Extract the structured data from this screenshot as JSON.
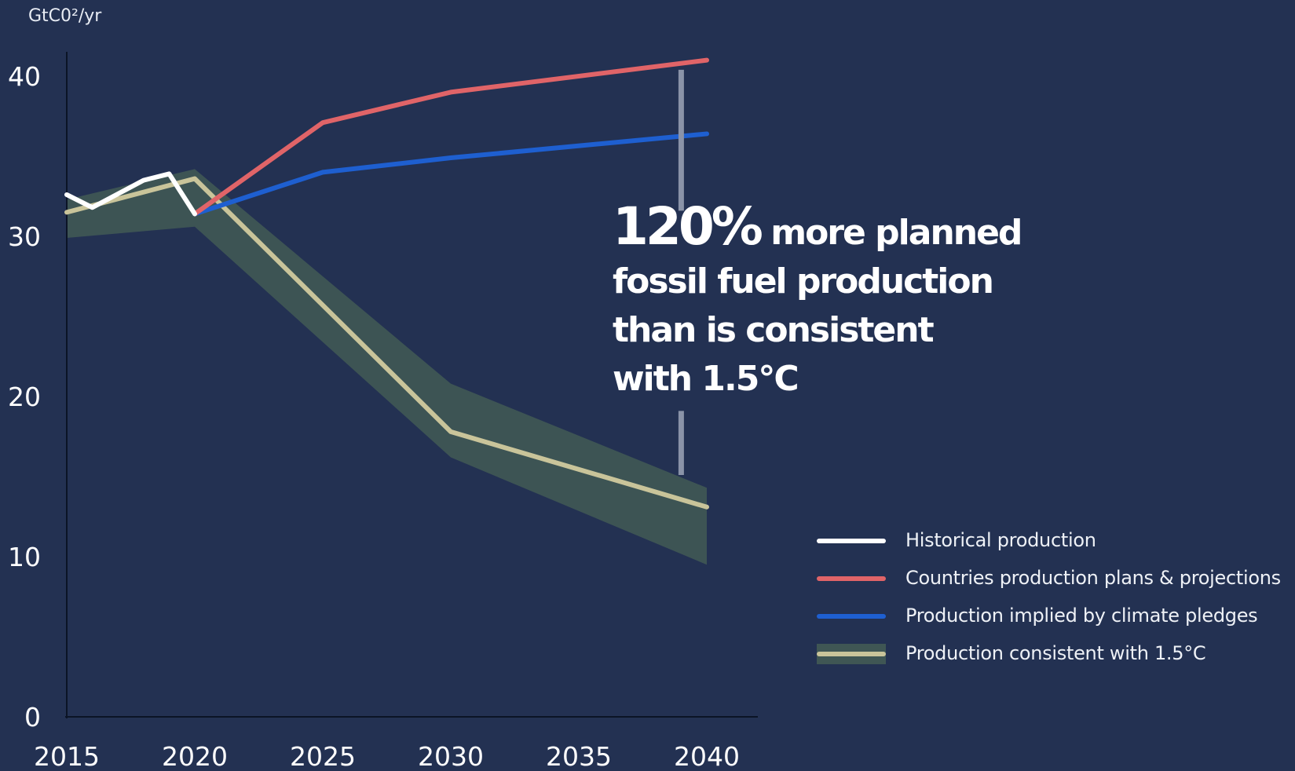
{
  "chart_data": {
    "type": "line",
    "ylabel": "GtC0²/yr",
    "xlim": [
      2015,
      2040
    ],
    "ylim": [
      0,
      40
    ],
    "x_ticks": [
      "2015",
      "2020",
      "2025",
      "2030",
      "2035",
      "2040"
    ],
    "y_ticks": [
      "0",
      "10",
      "20",
      "30",
      "40"
    ],
    "colors": {
      "historical": "#ffffff",
      "plans": "#e06468",
      "pledges": "#1e5fd0",
      "consistent": "#c9c49a",
      "band": "#3f5654",
      "gap_marker": "#8a93a8"
    },
    "series": [
      {
        "name": "Historical production",
        "x": [
          2015,
          2016,
          2018,
          2019,
          2020
        ],
        "y": [
          32.6,
          31.8,
          33.5,
          33.9,
          31.4
        ]
      },
      {
        "name": "Countries production plans & projections",
        "x": [
          2020,
          2025,
          2030,
          2040
        ],
        "y": [
          31.4,
          37.1,
          39.0,
          41.0
        ]
      },
      {
        "name": "Production implied by climate pledges",
        "x": [
          2020,
          2025,
          2030,
          2040
        ],
        "y": [
          31.4,
          34.0,
          34.9,
          36.4
        ]
      },
      {
        "name": "Production consistent with 1.5°C",
        "x": [
          2015,
          2020,
          2030,
          2040
        ],
        "y": [
          31.5,
          33.6,
          17.8,
          13.1
        ],
        "band_upper": [
          32.3,
          34.2,
          20.8,
          14.3
        ],
        "band_lower": [
          29.9,
          30.6,
          16.2,
          9.5
        ]
      }
    ],
    "annotation": {
      "big": "120%",
      "lines": [
        "more planned",
        "fossil fuel production",
        "than is consistent",
        "with 1.5°C"
      ],
      "gap_x": 2039
    },
    "legend_position": "bottom-right"
  }
}
